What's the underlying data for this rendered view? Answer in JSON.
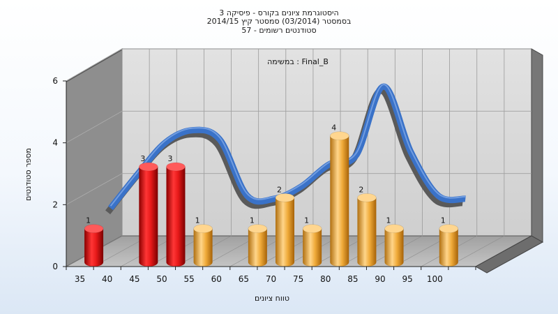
{
  "chart_data": {
    "type": "bar",
    "title_lines": [
      "היסטוגרמת ציונים בקורס - פיסיקה 3",
      "בסמסטר  (03/2014)  סמסטר קיץ 2014/15",
      "סטודנטים רשומים - 57"
    ],
    "inner_label": "במשימה : Final_B",
    "xlabel": "טווח ציונים",
    "ylabel": "מספר סטודנטים",
    "x_ticks": [
      "35",
      "40",
      "45",
      "50",
      "55",
      "60",
      "65",
      "70",
      "75",
      "80",
      "85",
      "90",
      "95",
      "100"
    ],
    "y_ticks": [
      "0",
      "2",
      "4",
      "6"
    ],
    "ylim": [
      0,
      6
    ],
    "grid": true,
    "bars": [
      {
        "x": 35,
        "value": 1,
        "color": "red"
      },
      {
        "x": 45,
        "value": 3,
        "color": "red"
      },
      {
        "x": 50,
        "value": 3,
        "color": "red"
      },
      {
        "x": 55,
        "value": 1,
        "color": "orange"
      },
      {
        "x": 65,
        "value": 1,
        "color": "orange"
      },
      {
        "x": 70,
        "value": 2,
        "color": "orange"
      },
      {
        "x": 75,
        "value": 1,
        "color": "orange"
      },
      {
        "x": 80,
        "value": 4,
        "color": "orange"
      },
      {
        "x": 85,
        "value": 2,
        "color": "orange"
      },
      {
        "x": 90,
        "value": 1,
        "color": "orange"
      },
      {
        "x": 100,
        "value": 1,
        "color": "orange"
      }
    ],
    "curve": {
      "color": "#3a72c8",
      "x": [
        35,
        40,
        45,
        50,
        55,
        60,
        65,
        70,
        75,
        80,
        85,
        90,
        95,
        100
      ],
      "y": [
        0.8,
        1.9,
        2.9,
        3.3,
        3.0,
        1.2,
        1.1,
        1.5,
        2.2,
        2.5,
        4.7,
        2.6,
        1.2,
        1.1
      ]
    },
    "colors": {
      "red": "#e01818",
      "orange": "#f0a838"
    }
  }
}
